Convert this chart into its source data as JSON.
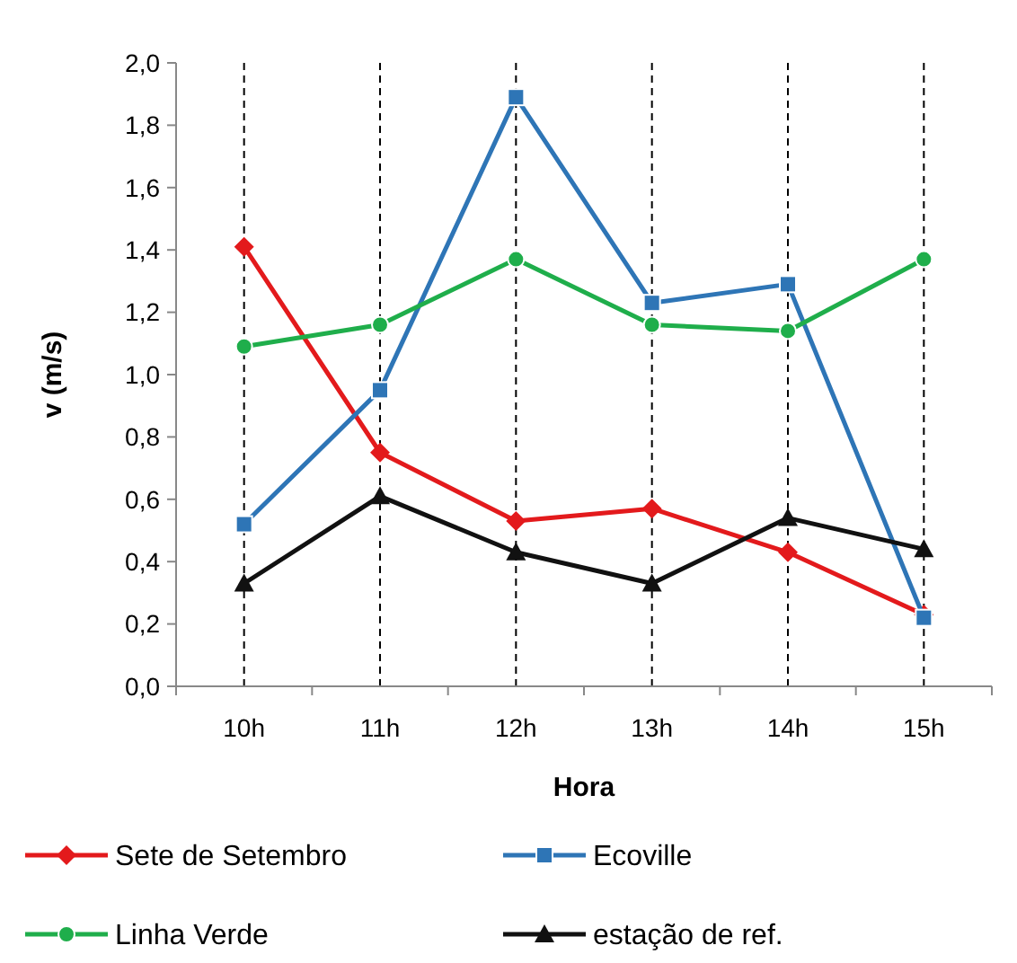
{
  "chart_data": {
    "type": "line",
    "xlabel": "Hora",
    "ylabel": "v (m/s)",
    "categories": [
      "10h",
      "11h",
      "12h",
      "13h",
      "14h",
      "15h"
    ],
    "series": [
      {
        "name": "Sete de Setembro",
        "color": "#e31a1c",
        "marker": "diamond",
        "values": [
          1.41,
          0.75,
          0.53,
          0.57,
          0.43,
          0.23
        ]
      },
      {
        "name": "Ecoville",
        "color": "#2e75b6",
        "marker": "square",
        "values": [
          0.52,
          0.95,
          1.89,
          1.23,
          1.29,
          0.22
        ]
      },
      {
        "name": "Linha Verde",
        "color": "#1fae4b",
        "marker": "circle",
        "values": [
          1.09,
          1.16,
          1.37,
          1.16,
          1.14,
          1.37
        ]
      },
      {
        "name": "estação de ref.",
        "color": "#111111",
        "marker": "triangle",
        "values": [
          0.33,
          0.61,
          0.43,
          0.33,
          0.54,
          0.44
        ]
      }
    ],
    "ylim": [
      0,
      2
    ],
    "yticks": [
      {
        "value": 0,
        "label": "0,0"
      },
      {
        "value": 0.2,
        "label": "0,2"
      },
      {
        "value": 0.4,
        "label": "0,4"
      },
      {
        "value": 0.6,
        "label": "0,6"
      },
      {
        "value": 0.8,
        "label": "0,8"
      },
      {
        "value": 1,
        "label": "1,0"
      },
      {
        "value": 1.2,
        "label": "1,2"
      },
      {
        "value": 1.4,
        "label": "1,4"
      },
      {
        "value": 1.6,
        "label": "1,6"
      },
      {
        "value": 1.8,
        "label": "1,8"
      },
      {
        "value": 2,
        "label": "2,0"
      }
    ],
    "grid": "x",
    "legend": "bottom"
  }
}
